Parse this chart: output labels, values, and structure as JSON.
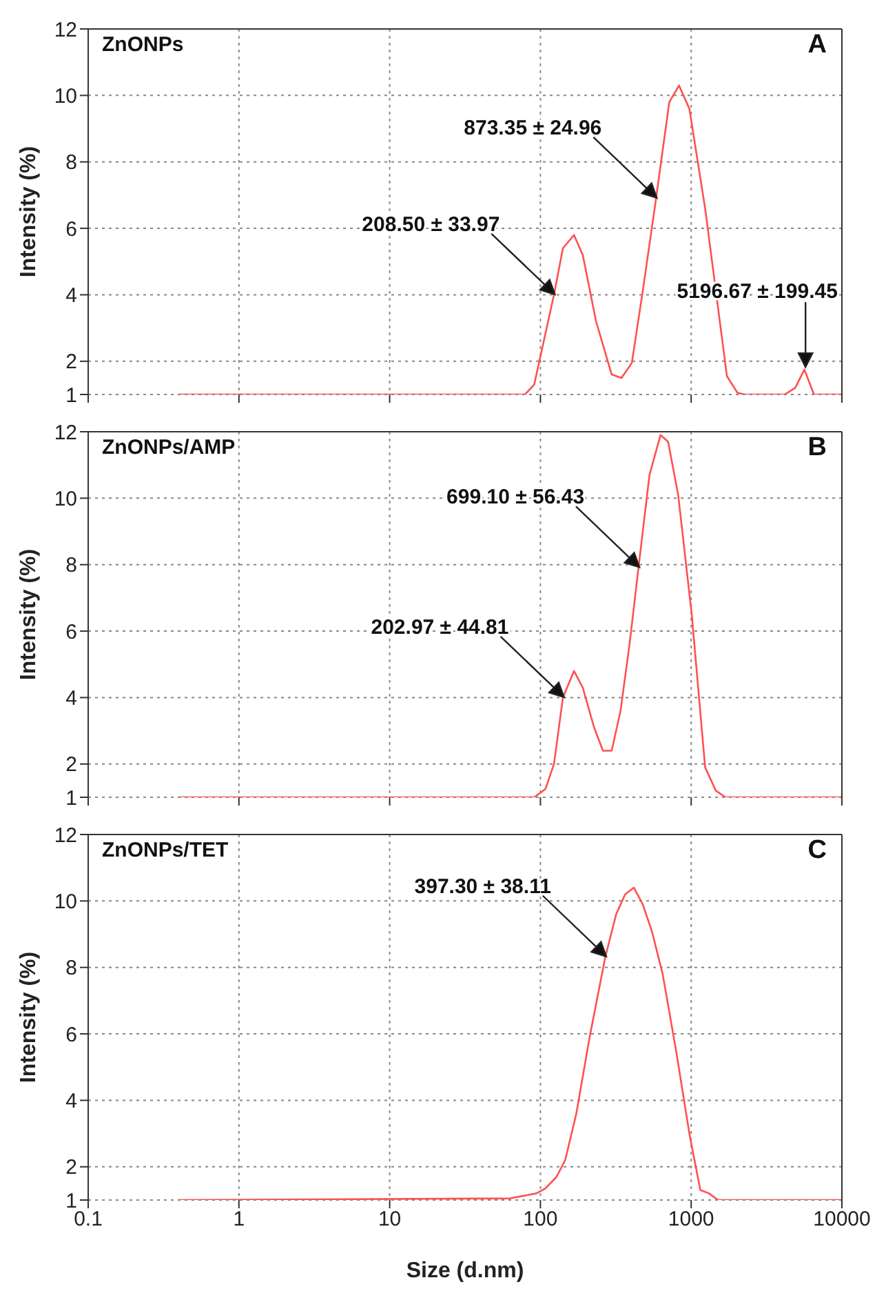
{
  "chart_data": [
    {
      "type": "line",
      "title": "ZnONPs",
      "ylabel": "Intensity (%)",
      "log": "x",
      "grid": true,
      "tick_labels": "y",
      "xlim": [
        0.1,
        10000
      ],
      "xticks": [
        0.1,
        1,
        10,
        100,
        1000,
        10000
      ],
      "ylim": [
        1,
        12
      ],
      "yticks": [
        1,
        2,
        4,
        6,
        8,
        10,
        12
      ],
      "x": [
        0.4,
        79,
        91,
        104,
        123,
        141,
        167,
        191,
        234,
        297,
        345,
        404,
        477,
        585,
        716,
        831,
        973,
        1238,
        1727,
        2030,
        2260,
        4170,
        4900,
        5640,
        6530,
        10000
      ],
      "series": [
        {
          "color": "#ff5050",
          "values": [
            1,
            1,
            1.3,
            2.5,
            4,
            5.4,
            5.8,
            5.2,
            3.2,
            1.6,
            1.5,
            1.95,
            4.1,
            6.9,
            9.8,
            10.3,
            9.6,
            6.6,
            1.55,
            1.05,
            1,
            1,
            1.2,
            1.75,
            1,
            1
          ]
        }
      ],
      "annotations": [
        "A",
        "208.50 ± 33.97",
        "873.35 ± 24.96",
        "5196.67 ± 199.45"
      ]
    },
    {
      "type": "line",
      "title": "ZnONPs/AMP",
      "ylabel": "Intensity (%)",
      "log": "x",
      "grid": true,
      "tick_labels": "y",
      "xlim": [
        0.1,
        10000
      ],
      "xticks": [
        0.1,
        1,
        10,
        100,
        1000,
        10000
      ],
      "ylim": [
        1,
        12
      ],
      "yticks": [
        1,
        2,
        4,
        6,
        8,
        10,
        12
      ],
      "x": [
        0.4,
        91,
        108,
        123,
        141,
        167,
        191,
        227,
        260,
        297,
        340,
        390,
        447,
        529,
        626,
        703,
        820,
        1009,
        1238,
        1456,
        1690,
        10000
      ],
      "series": [
        {
          "color": "#ff5050",
          "values": [
            1,
            1,
            1.25,
            2,
            4,
            4.8,
            4.3,
            3.1,
            2.4,
            2.4,
            3.6,
            5.6,
            7.9,
            10.7,
            11.9,
            11.7,
            10.1,
            6.5,
            1.9,
            1.2,
            1,
            1
          ]
        }
      ],
      "annotations": [
        "B",
        "202.97 ± 44.81",
        "699.10 ± 56.43"
      ]
    },
    {
      "type": "line",
      "title": "ZnONPs/TET",
      "ylabel": "Intensity (%)",
      "xlabel": "Size (d.nm)",
      "log": "x",
      "grid": true,
      "xlim": [
        0.1,
        10000
      ],
      "xticks": [
        0.1,
        1,
        10,
        100,
        1000,
        10000
      ],
      "ylim": [
        1,
        12
      ],
      "yticks": [
        1,
        2,
        4,
        6,
        8,
        10,
        12
      ],
      "x": [
        0.4,
        63,
        94,
        108,
        128,
        146,
        173,
        212,
        269,
        318,
        365,
        417,
        477,
        548,
        647,
        794,
        973,
        1150,
        1314,
        1508,
        10000
      ],
      "series": [
        {
          "color": "#ff5050",
          "values": [
            1,
            1.05,
            1.2,
            1.35,
            1.7,
            2.2,
            3.6,
            5.9,
            8.3,
            9.6,
            10.2,
            10.4,
            9.9,
            9.1,
            7.8,
            5.5,
            3,
            1.3,
            1.2,
            1,
            1
          ]
        }
      ],
      "annotations": [
        "C",
        "397.30 ± 38.11"
      ]
    }
  ]
}
